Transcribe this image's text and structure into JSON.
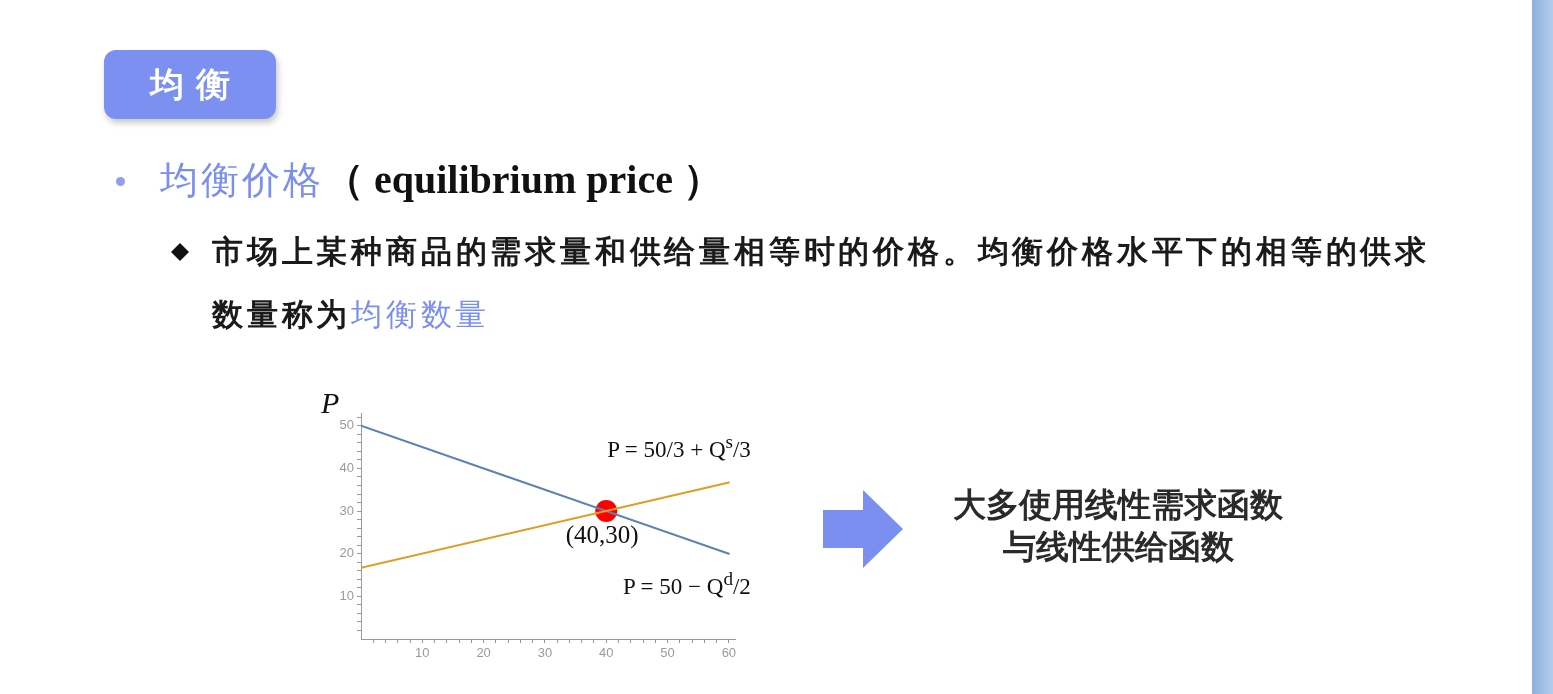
{
  "chart_data": {
    "type": "line",
    "title": "均衡",
    "subtitle": "均衡价格（ equilibrium price ）",
    "ylabel": "P",
    "annotations": [
      "市场上某种商品的需求量和供给量相等时的价格。均衡价格水平下的相等的供求",
      "数量称为",
      "均衡数量",
      {
        "text": "(40,30)",
        "x": 40,
        "y": 30
      },
      "大多使用线性需求函数",
      "与线性供给函数"
    ],
    "series": [
      {
        "name": "P = 50/3 + Q$^{s}$/3",
        "color": "#e19c24",
        "x": [
          0,
          60
        ],
        "values": [
          16.7,
          36.7
        ]
      },
      {
        "name": "P = 50 − Q$^{d}$/2",
        "color": "#5e81b5",
        "x": [
          0,
          60
        ],
        "values": [
          50,
          20
        ]
      },
      {
        "type": "scatter",
        "color": "#ff0000",
        "marker": "circle",
        "x": [
          40
        ],
        "values": [
          30
        ]
      }
    ],
    "marker": "none",
    "xlim": [
      0,
      61
    ],
    "ylim": [
      0,
      53
    ],
    "xticks": [
      {
        "value": 2,
        "label": null
      },
      {
        "value": 4,
        "label": null
      },
      {
        "value": 6,
        "label": null
      },
      {
        "value": 8,
        "label": null
      },
      10,
      {
        "value": 12,
        "label": null
      },
      {
        "value": 14,
        "label": null
      },
      {
        "value": 16,
        "label": null
      },
      {
        "value": 18,
        "label": null
      },
      20,
      {
        "value": 22,
        "label": null
      },
      {
        "value": 24,
        "label": null
      },
      {
        "value": 26,
        "label": null
      },
      {
        "value": 28,
        "label": null
      },
      30,
      {
        "value": 32,
        "label": null
      },
      {
        "value": 34,
        "label": null
      },
      {
        "value": 36,
        "label": null
      },
      {
        "value": 38,
        "label": null
      },
      40,
      {
        "value": 42,
        "label": null
      },
      {
        "value": 44,
        "label": null
      },
      {
        "value": 46,
        "label": null
      },
      {
        "value": 48,
        "label": null
      },
      50,
      {
        "value": 52,
        "label": null
      },
      {
        "value": 54,
        "label": null
      },
      {
        "value": 56,
        "label": null
      },
      {
        "value": 58,
        "label": null
      },
      60
    ],
    "yticks": [
      {
        "value": 2,
        "label": null
      },
      {
        "value": 4,
        "label": null
      },
      {
        "value": 6,
        "label": null
      },
      {
        "value": 8,
        "label": null
      },
      10,
      {
        "value": 12,
        "label": null
      },
      {
        "value": 14,
        "label": null
      },
      {
        "value": 16,
        "label": null
      },
      {
        "value": 18,
        "label": null
      },
      20,
      {
        "value": 22,
        "label": null
      },
      {
        "value": 24,
        "label": null
      },
      {
        "value": 26,
        "label": null
      },
      {
        "value": 28,
        "label": null
      },
      30,
      {
        "value": 32,
        "label": null
      },
      {
        "value": 34,
        "label": null
      },
      {
        "value": 36,
        "label": null
      },
      {
        "value": 38,
        "label": null
      },
      40,
      {
        "value": 42,
        "label": null
      },
      {
        "value": 44,
        "label": null
      },
      {
        "value": 46,
        "label": null
      },
      {
        "value": 48,
        "label": null
      },
      50,
      {
        "value": 52,
        "label": null
      }
    ]
  }
}
